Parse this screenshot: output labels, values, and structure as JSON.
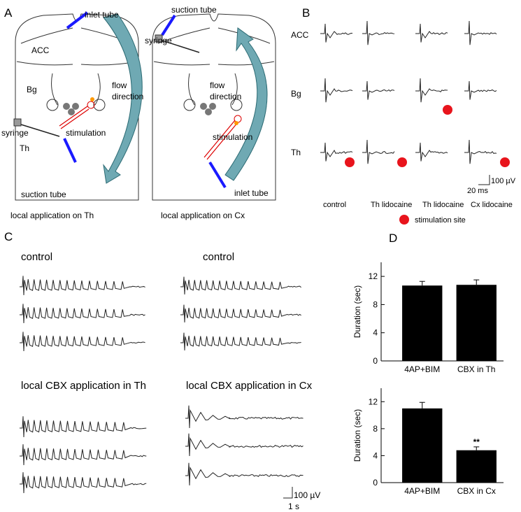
{
  "panel_labels": [
    "A",
    "B",
    "C",
    "D"
  ],
  "panel_a": {
    "left": {
      "labels": [
        "inlet tube",
        "ACC",
        "Bg",
        "flow",
        "direction",
        "syringe",
        "stimulation",
        "Th",
        "suction tube"
      ],
      "caption": "local application on Th"
    },
    "right": {
      "labels": [
        "suction tube",
        "syringe",
        "flow",
        "direction",
        "stimulation",
        "inlet tube"
      ],
      "caption": "local application on Cx"
    }
  },
  "panel_b": {
    "rows": [
      "ACC",
      "Bg",
      "Th"
    ],
    "columns": [
      "control",
      "Th lidocaine",
      "Th lidocaine",
      "Cx lidocaine"
    ],
    "scale_bar": [
      "100 µV",
      "20 ms"
    ],
    "legend": "stimulation site"
  },
  "panel_c": {
    "conditions": [
      "control",
      "control",
      "local CBX application in Th",
      "local CBX application in Cx"
    ],
    "scale_bar": [
      "100 µV",
      "1 s"
    ]
  },
  "chart_data": [
    {
      "type": "bar",
      "ylabel": "Duration (sec)",
      "categories": [
        "4AP+BIM",
        "CBX in Th"
      ],
      "values": [
        10.7,
        10.8
      ],
      "errors": [
        0.6,
        0.7
      ],
      "color": "#000000",
      "ylim": [
        0,
        14
      ],
      "yticks": [
        0,
        4,
        8,
        12
      ]
    },
    {
      "type": "bar",
      "ylabel": "Duration (sec)",
      "categories": [
        "4AP+BIM",
        "CBX in Cx"
      ],
      "values": [
        11,
        4.8
      ],
      "errors": [
        0.9,
        0.5
      ],
      "color": "#000000",
      "ylim": [
        0,
        14
      ],
      "yticks": [
        0,
        4,
        8,
        12
      ],
      "annotations": [
        "**"
      ]
    }
  ]
}
